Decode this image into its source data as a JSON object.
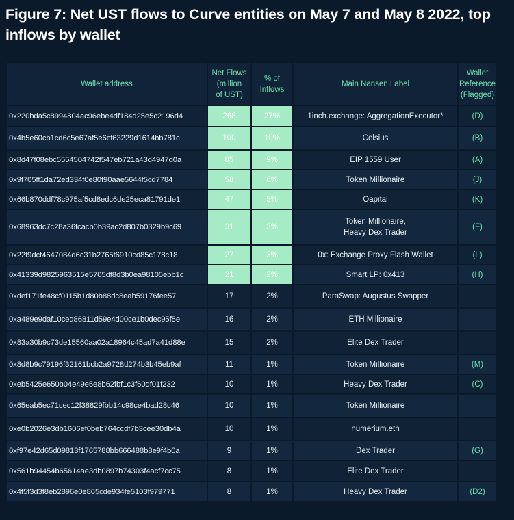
{
  "title": "Figure 7: Net UST flows to Curve entities on May 7 and May 8 2022, top inflows by wallet",
  "headers": {
    "wallet": "Wallet address",
    "flows_l1": "Net Flows",
    "flows_l2": "(million",
    "flows_l3": "of UST)",
    "pct_l1": "% of",
    "pct_l2": "Inflows",
    "label": "Main Nansen Label",
    "ref_l1": "Wallet",
    "ref_l2": "Reference",
    "ref_l3": "(Flagged)"
  },
  "chart_data": {
    "type": "table",
    "columns": [
      "Wallet address",
      "Net Flows (million of UST)",
      "% of Inflows",
      "Main Nansen Label",
      "Wallet Reference (Flagged)"
    ],
    "rows": [
      {
        "wallet": "0x220bda5c8994804ac96ebe4df184d25e5c2196d4",
        "flow": "268",
        "pct": "27%",
        "label": "1inch.exchange: AggregationExecutor*",
        "label2": "",
        "ref": "(D)",
        "hl": true
      },
      {
        "wallet": "0x4b5e60cb1cd6c5e67af5e6cf63229d1614bb781c",
        "flow": "100",
        "pct": "10%",
        "label": "Celsius",
        "label2": "",
        "ref": "(B)",
        "hl": true
      },
      {
        "wallet": "0x8d47f08ebc5554504742f547eb721a43d4947d0a",
        "flow": "85",
        "pct": "9%",
        "label": "EIP 1559 User",
        "label2": "",
        "ref": "(A)",
        "hl": true
      },
      {
        "wallet": "0x9f705ff1da72ed334f0e80f90aae5644f5cd7784",
        "flow": "58",
        "pct": "6%",
        "label": "Token Millionaire",
        "label2": "",
        "ref": "(J)",
        "hl": true
      },
      {
        "wallet": "0x66b870ddf78c975af5cd8edc6de25eca81791de1",
        "flow": "47",
        "pct": "5%",
        "label": "Oapital",
        "label2": "",
        "ref": "(K)",
        "hl": true
      },
      {
        "wallet": "0x68963dc7c28a36fcacb0b39ac2d807b0329b9c69",
        "flow": "31",
        "pct": "3%",
        "label": "Token Millionaire,",
        "label2": "Heavy Dex Trader",
        "ref": "(F)",
        "hl": true
      },
      {
        "wallet": "0x22f9dcf4647084d6c31b2765f6910cd85c178c18",
        "flow": "27",
        "pct": "3%",
        "label": "0x: Exchange Proxy Flash Wallet",
        "label2": "",
        "ref": "(L)",
        "hl": true
      },
      {
        "wallet": "0x41339d9825963515e5705df8d3b0ea98105ebb1c",
        "flow": "21",
        "pct": "2%",
        "label": "Smart LP: 0x413",
        "label2": "",
        "ref": "(H)",
        "hl": true
      },
      {
        "wallet": "0xdef171fe48cf0115b1d80b88dc8eab59176fee57",
        "flow": "17",
        "pct": "2%",
        "label": "ParaSwap: Augustus Swapper",
        "label2": "",
        "ref": "",
        "hl": false
      },
      {
        "wallet": "0xa489e9daf10ced86811d59e4d00ce1b0dec95f5e",
        "flow": "16",
        "pct": "2%",
        "label": "ETH Millionaire",
        "label2": "",
        "ref": "",
        "hl": false
      },
      {
        "wallet": "0x83a30b9c73de15560aa02a18964c45ad7a41d88e",
        "flow": "15",
        "pct": "2%",
        "label": "Elite Dex Trader",
        "label2": "",
        "ref": "",
        "hl": false
      },
      {
        "wallet": "0x8d8b9c79196f32161bcb2a9728d274b3b45eb9af",
        "flow": "11",
        "pct": "1%",
        "label": "Token Millionaire",
        "label2": "",
        "ref": "(M)",
        "hl": false
      },
      {
        "wallet": "0xeb5425e650b04e49e5e8b62fbf1c3f60df01f232",
        "flow": "10",
        "pct": "1%",
        "label": "Heavy Dex Trader",
        "label2": "",
        "ref": "(C)",
        "hl": false
      },
      {
        "wallet": "0x65eab5ec71cec12f38829fbb14c98ce4bad28c46",
        "flow": "10",
        "pct": "1%",
        "label": "Token Millionaire",
        "label2": "",
        "ref": "",
        "hl": false
      },
      {
        "wallet": "0xe0b2026e3db1606ef0beb764ccdf7b3cee30db4a",
        "flow": "10",
        "pct": "1%",
        "label": "numerium.eth",
        "label2": "",
        "ref": "",
        "hl": false
      },
      {
        "wallet": "0xf97e42d65d09813f1765788bb666488b8e9f4b0a",
        "flow": "9",
        "pct": "1%",
        "label": "Dex Trader",
        "label2": "",
        "ref": "(G)",
        "hl": false
      },
      {
        "wallet": "0x561b94454b65614ae3db0897b74303f4acf7cc75",
        "flow": "8",
        "pct": "1%",
        "label": "Elite Dex Trader",
        "label2": "",
        "ref": "",
        "hl": false
      },
      {
        "wallet": "0x4f5f3d3f8eb2896e0e865cde934fe5103f979771",
        "flow": "8",
        "pct": "1%",
        "label": "Heavy Dex Trader",
        "label2": "",
        "ref": "(D2)",
        "hl": false
      }
    ]
  },
  "colors": {
    "background": "#0b1a2b",
    "header_text": "#6fe0b0",
    "highlight_cell": "#a4ebc6"
  }
}
